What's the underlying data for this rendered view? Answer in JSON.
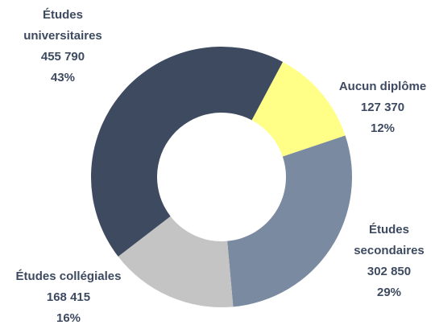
{
  "chart_data": {
    "type": "donut",
    "categories": [
      "Aucun diplôme",
      "Études secondaires",
      "Études collégiales",
      "Études universitaires"
    ],
    "values": [
      127370,
      302850,
      168415,
      455790
    ],
    "value_labels": [
      "127 370",
      "302 850",
      "168 415",
      "455 790"
    ],
    "percent_labels": [
      "12%",
      "29%",
      "16%",
      "43%"
    ],
    "colors": [
      "#ffff88",
      "#7a8aa0",
      "#c4c4c4",
      "#3d4a60"
    ]
  }
}
